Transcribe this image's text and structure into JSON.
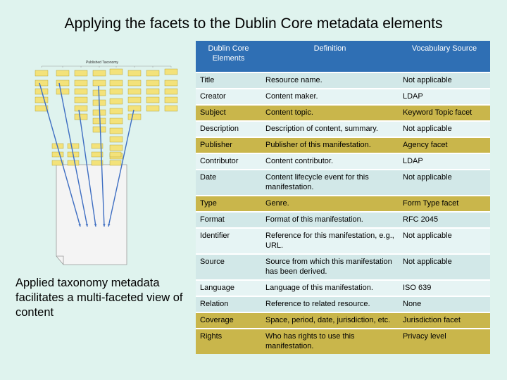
{
  "title": "Applying the facets to the Dublin Core metadata elements",
  "caption": "Applied taxonomy metadata facilitates a multi-faceted view of content",
  "diagram": {
    "title": "Published Taxonomy"
  },
  "colors": {
    "header": "#2f6fb4",
    "highlight": "#c9b64b",
    "row": "#d2e8e8",
    "rowAlt": "#e6f4f4",
    "background": "#dff3ee"
  },
  "table": {
    "headers": [
      "Dublin Core Elements",
      "Definition",
      "Vocabulary Source"
    ],
    "rows": [
      {
        "element": "Title",
        "definition": "Resource name.",
        "source": "Not applicable",
        "highlight": false
      },
      {
        "element": "Creator",
        "definition": "Content maker.",
        "source": "LDAP",
        "highlight": false
      },
      {
        "element": "Subject",
        "definition": "Content topic.",
        "source": "Keyword Topic facet",
        "highlight": true
      },
      {
        "element": "Description",
        "definition": "Description of content, summary.",
        "source": "Not applicable",
        "highlight": false
      },
      {
        "element": "Publisher",
        "definition": "Publisher of this manifestation.",
        "source": "Agency facet",
        "highlight": true
      },
      {
        "element": "Contributor",
        "definition": "Content contributor.",
        "source": "LDAP",
        "highlight": false
      },
      {
        "element": "Date",
        "definition": "Content lifecycle event for this manifestation.",
        "source": "Not applicable",
        "highlight": false
      },
      {
        "element": "Type",
        "definition": "Genre.",
        "source": "Form Type facet",
        "highlight": true
      },
      {
        "element": "Format",
        "definition": "Format of this manifestation.",
        "source": "RFC 2045",
        "highlight": false
      },
      {
        "element": "Identifier",
        "definition": "Reference for this manifestation, e.g., URL.",
        "source": "Not applicable",
        "highlight": false
      },
      {
        "element": "Source",
        "definition": "Source from which this manifestation has been derived.",
        "source": "Not applicable",
        "highlight": false
      },
      {
        "element": "Language",
        "definition": "Language of this manifestation.",
        "source": "ISO 639",
        "highlight": false
      },
      {
        "element": "Relation",
        "definition": "Reference to related resource.",
        "source": "None",
        "highlight": false
      },
      {
        "element": "Coverage",
        "definition": "Space, period, date, jurisdiction, etc.",
        "source": "Jurisdiction facet",
        "highlight": true
      },
      {
        "element": "Rights",
        "definition": "Who has rights to use this manifestation.",
        "source": "Privacy level",
        "highlight": true
      }
    ]
  }
}
